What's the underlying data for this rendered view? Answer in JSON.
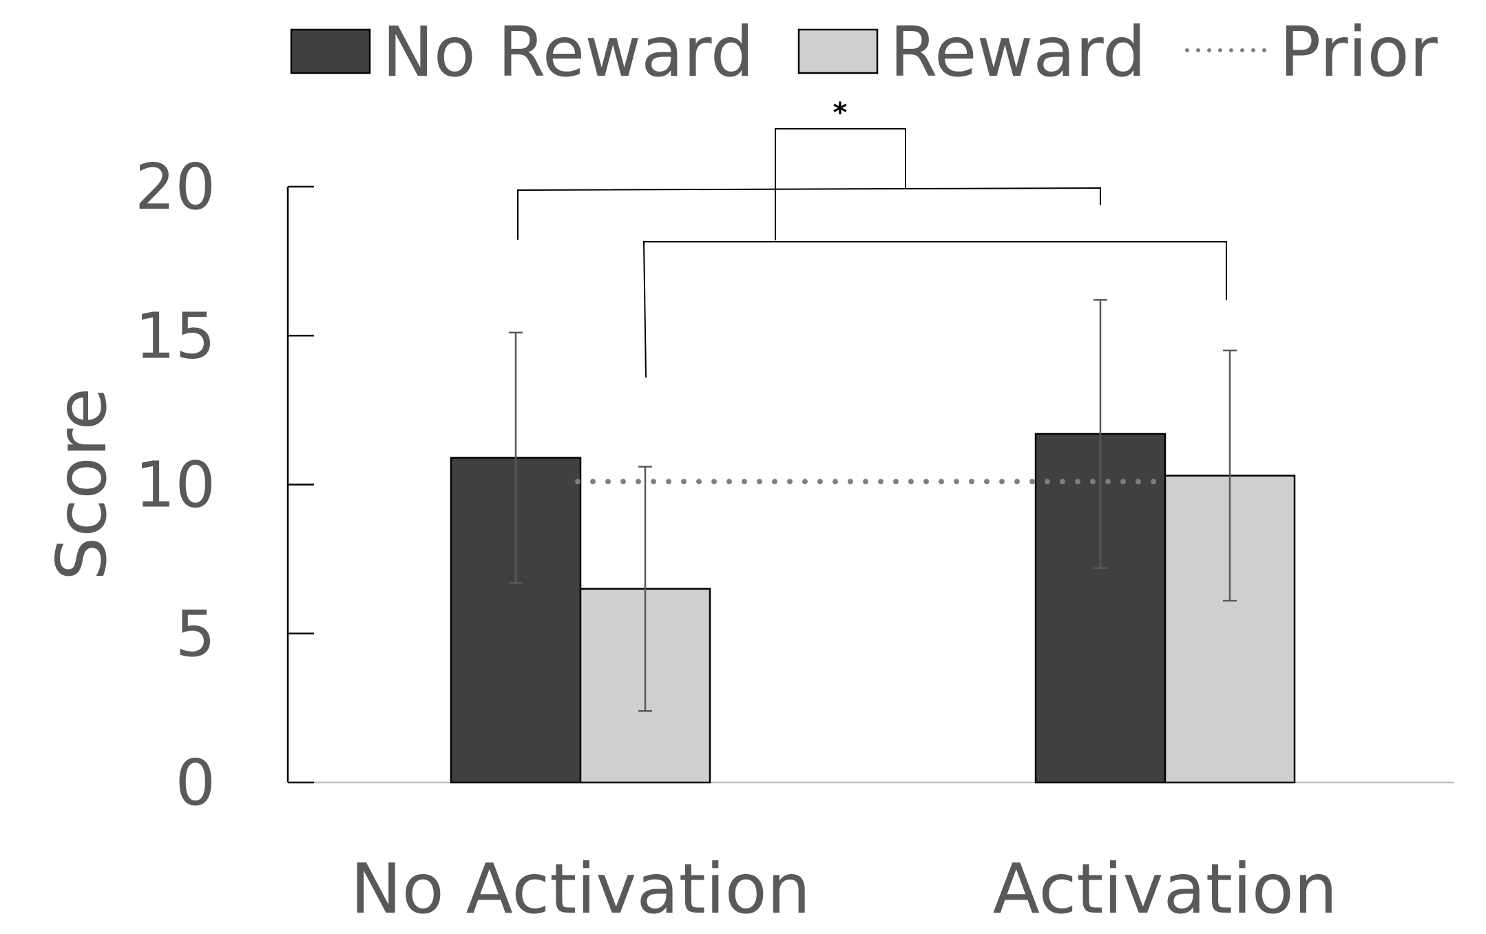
{
  "chart_data": {
    "type": "bar",
    "categories": [
      "No Activation",
      "Activation"
    ],
    "series": [
      {
        "name": "No Reward",
        "values": [
          10.9,
          11.7
        ],
        "error_low": [
          6.7,
          7.2
        ],
        "error_high": [
          15.1,
          16.2
        ],
        "color": "#404040"
      },
      {
        "name": "Reward",
        "values": [
          6.5,
          10.3
        ],
        "error_low": [
          2.4,
          6.1
        ],
        "error_high": [
          10.6,
          14.5
        ],
        "color": "#d0cfd0"
      }
    ],
    "reference_line": {
      "name": "Prior",
      "value": 10.1,
      "style": "dotted",
      "color": "#7f7f7f"
    },
    "xlabel": "",
    "ylabel": "Score",
    "ylim": [
      0,
      20
    ],
    "yticks": [
      0,
      5,
      10,
      15,
      20
    ],
    "grid": false,
    "legend": {
      "position": "top",
      "entries": [
        {
          "label": "No Reward",
          "kind": "swatch",
          "color": "#404040"
        },
        {
          "label": "Reward",
          "kind": "swatch",
          "color": "#d0cfd0"
        },
        {
          "label": "Prior",
          "kind": "dotted-line",
          "color": "#7f7f7f"
        }
      ]
    },
    "significance": {
      "label": "*"
    }
  }
}
